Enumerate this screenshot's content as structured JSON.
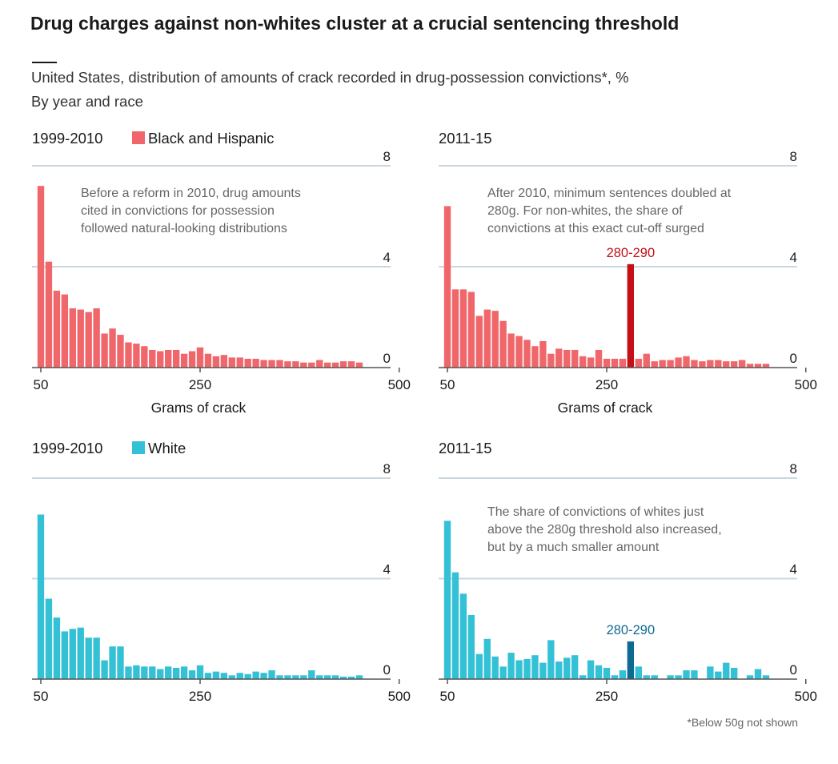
{
  "title": "Drug charges against non-whites cluster at a crucial sentencing threshold",
  "subtitle": "United States, distribution of amounts of crack recorded in drug-possession convictions*, %",
  "subtitle2": "By year and race",
  "footnote": "*Below 50g not shown",
  "colors": {
    "black_hispanic": "#f0676b",
    "black_hispanic_highlight": "#c40f16",
    "white": "#34c1d6",
    "white_highlight": "#0f6a92",
    "gridline": "#c9d8e0",
    "axis": "#555555"
  },
  "legend": {
    "black_hispanic": "Black and Hispanic",
    "white": "White"
  },
  "chart_data": [
    {
      "type": "bar",
      "period": "1999-2010",
      "series_name": "Black and Hispanic",
      "color_key": "black_hispanic",
      "xlabel": "Grams of crack",
      "xticks": [
        "50",
        "250",
        "500"
      ],
      "yticks": [
        "8",
        "4",
        "0"
      ],
      "ylim": [
        0,
        8
      ],
      "bin_width_g": 10,
      "x_start_g": 50,
      "annotation": [
        "Before a reform in 2010, drug amounts",
        "cited in convictions for possession",
        "followed natural-looking distributions"
      ],
      "highlight": null,
      "values": [
        7.2,
        4.2,
        3.05,
        2.9,
        2.35,
        2.3,
        2.2,
        2.35,
        1.35,
        1.55,
        1.3,
        1.0,
        0.95,
        0.85,
        0.7,
        0.65,
        0.7,
        0.7,
        0.55,
        0.65,
        0.8,
        0.55,
        0.45,
        0.5,
        0.4,
        0.4,
        0.35,
        0.35,
        0.3,
        0.3,
        0.3,
        0.25,
        0.25,
        0.2,
        0.2,
        0.3,
        0.2,
        0.2,
        0.25,
        0.25,
        0.2
      ]
    },
    {
      "type": "bar",
      "period": "2011-15",
      "series_name": "Black and Hispanic",
      "color_key": "black_hispanic",
      "xlabel": "Grams of crack",
      "xticks": [
        "50",
        "250",
        "500"
      ],
      "yticks": [
        "8",
        "4",
        "0"
      ],
      "ylim": [
        0,
        8
      ],
      "bin_width_g": 10,
      "x_start_g": 50,
      "annotation": [
        "After 2010, minimum sentences doubled at",
        "280g. For non-whites, the share of",
        "convictions at this exact cut-off surged"
      ],
      "highlight": {
        "label": "280-290",
        "index": 23
      },
      "values": [
        6.4,
        3.1,
        3.1,
        3.0,
        2.05,
        2.3,
        2.25,
        1.85,
        1.35,
        1.25,
        1.1,
        0.85,
        1.05,
        0.55,
        0.75,
        0.7,
        0.7,
        0.45,
        0.4,
        0.7,
        0.35,
        0.35,
        0.35,
        4.1,
        0.35,
        0.55,
        0.25,
        0.3,
        0.3,
        0.4,
        0.45,
        0.3,
        0.25,
        0.3,
        0.3,
        0.25,
        0.25,
        0.3,
        0.15,
        0.15,
        0.15
      ]
    },
    {
      "type": "bar",
      "period": "1999-2010",
      "series_name": "White",
      "color_key": "white",
      "xlabel": "",
      "xticks": [
        "50",
        "250",
        "500"
      ],
      "yticks": [
        "8",
        "4",
        "0"
      ],
      "ylim": [
        0,
        8
      ],
      "bin_width_g": 10,
      "x_start_g": 50,
      "annotation": [],
      "highlight": null,
      "values": [
        6.55,
        3.2,
        2.45,
        1.9,
        2.0,
        2.05,
        1.65,
        1.65,
        0.75,
        1.3,
        1.3,
        0.5,
        0.55,
        0.5,
        0.5,
        0.4,
        0.5,
        0.45,
        0.5,
        0.35,
        0.55,
        0.25,
        0.3,
        0.25,
        0.15,
        0.25,
        0.2,
        0.3,
        0.25,
        0.35,
        0.15,
        0.15,
        0.15,
        0.15,
        0.35,
        0.15,
        0.15,
        0.15,
        0.1,
        0.1,
        0.15
      ]
    },
    {
      "type": "bar",
      "period": "2011-15",
      "series_name": "White",
      "color_key": "white",
      "xlabel": "",
      "xticks": [
        "50",
        "250",
        "500"
      ],
      "yticks": [
        "8",
        "4",
        "0"
      ],
      "ylim": [
        0,
        8
      ],
      "bin_width_g": 10,
      "x_start_g": 50,
      "annotation": [
        "The share of convictions of whites just",
        "above the 280g threshold also increased,",
        "but by a much smaller amount"
      ],
      "highlight": {
        "label": "280-290",
        "index": 23
      },
      "values": [
        6.3,
        4.25,
        3.4,
        2.55,
        1.0,
        1.6,
        0.9,
        0.5,
        1.05,
        0.75,
        0.8,
        0.95,
        0.65,
        1.55,
        0.7,
        0.85,
        0.95,
        0.15,
        0.75,
        0.55,
        0.45,
        0.15,
        0.35,
        1.5,
        0.5,
        0.15,
        0.15,
        0.0,
        0.15,
        0.15,
        0.35,
        0.35,
        0.0,
        0.5,
        0.3,
        0.65,
        0.45,
        0.0,
        0.15,
        0.4,
        0.15
      ]
    }
  ]
}
